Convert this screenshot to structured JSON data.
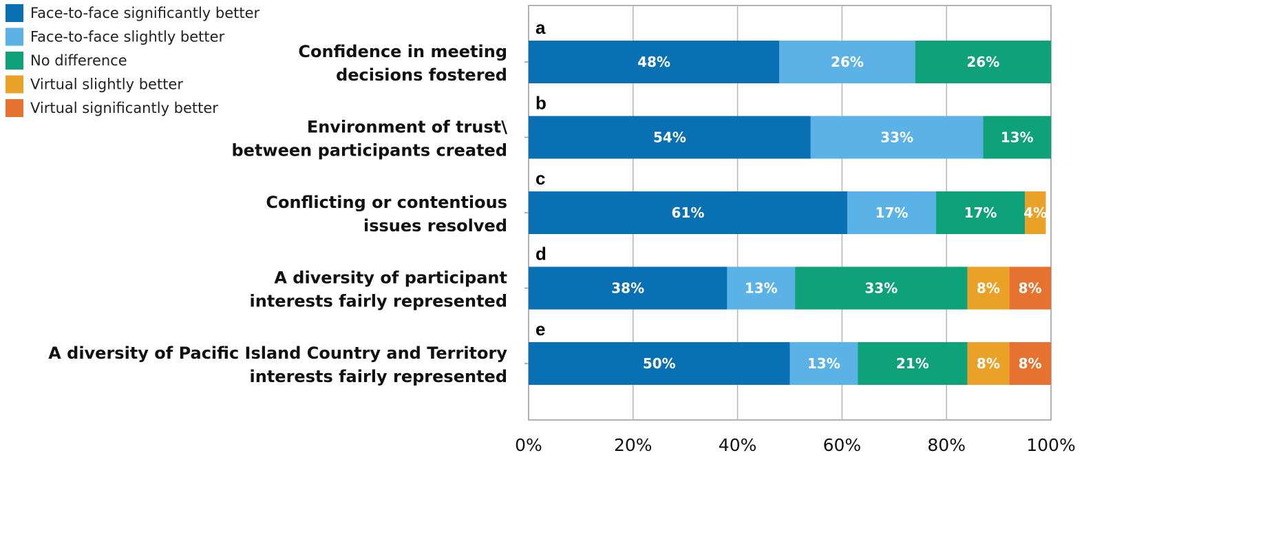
{
  "chart_data": {
    "type": "bar",
    "orientation": "horizontal",
    "stacked": true,
    "categories": [
      {
        "letter": "a",
        "label_lines": [
          "Confidence in meeting",
          "decisions fostered"
        ]
      },
      {
        "letter": "b",
        "label_lines": [
          "Environment of trust\\",
          "between participants created"
        ]
      },
      {
        "letter": "c",
        "label_lines": [
          "Conflicting or contentious",
          "issues resolved"
        ]
      },
      {
        "letter": "d",
        "label_lines": [
          "A diversity of participant",
          "interests fairly represented"
        ]
      },
      {
        "letter": "e",
        "label_lines": [
          "A diversity of Pacific Island Country and Territory",
          "interests fairly represented"
        ]
      }
    ],
    "series": [
      {
        "name": "Face-to-face significantly better",
        "color": "#0a70b4",
        "values": [
          48,
          54,
          61,
          38,
          50
        ]
      },
      {
        "name": "Face-to-face slightly better",
        "color": "#5bb2e6",
        "values": [
          26,
          33,
          17,
          13,
          13
        ]
      },
      {
        "name": "No difference",
        "color": "#0fa27a",
        "values": [
          26,
          13,
          17,
          33,
          21
        ]
      },
      {
        "name": "Virtual slightly better",
        "color": "#e9a227",
        "values": [
          0,
          0,
          4,
          8,
          8
        ]
      },
      {
        "name": "Virtual significantly better",
        "color": "#e6722f",
        "values": [
          0,
          0,
          0,
          8,
          8
        ]
      }
    ],
    "xlim": [
      0,
      100
    ],
    "xticks": [
      "0%",
      "20%",
      "40%",
      "60%",
      "80%",
      "100%"
    ],
    "xticks_values": [
      0,
      20,
      40,
      60,
      80,
      100
    ],
    "grid": true,
    "legend_position": "top-left",
    "label_suffix": "%"
  }
}
